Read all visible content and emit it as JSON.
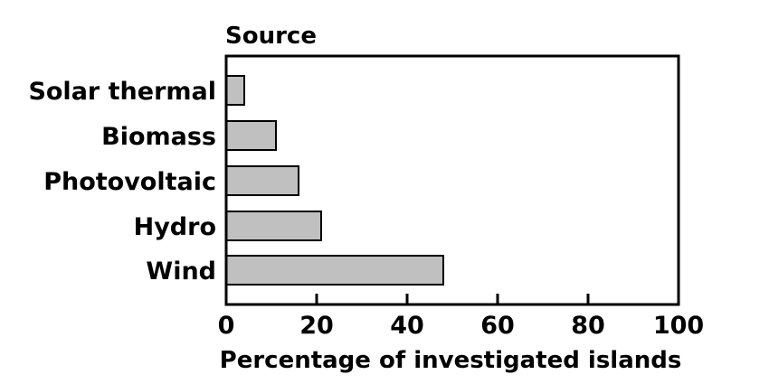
{
  "chart_data": {
    "type": "bar",
    "orientation": "horizontal",
    "categories": [
      "Solar thermal",
      "Biomass",
      "Photovoltaic",
      "Hydro",
      "Wind"
    ],
    "values": [
      4,
      11,
      16,
      21,
      48
    ],
    "y_axis_title": "Source",
    "xlabel": "Percentage of investigated islands",
    "xlim": [
      0,
      100
    ],
    "xticks": [
      0,
      20,
      40,
      60,
      80,
      100
    ],
    "grid": false,
    "bar_color": "#c0c0c0"
  }
}
